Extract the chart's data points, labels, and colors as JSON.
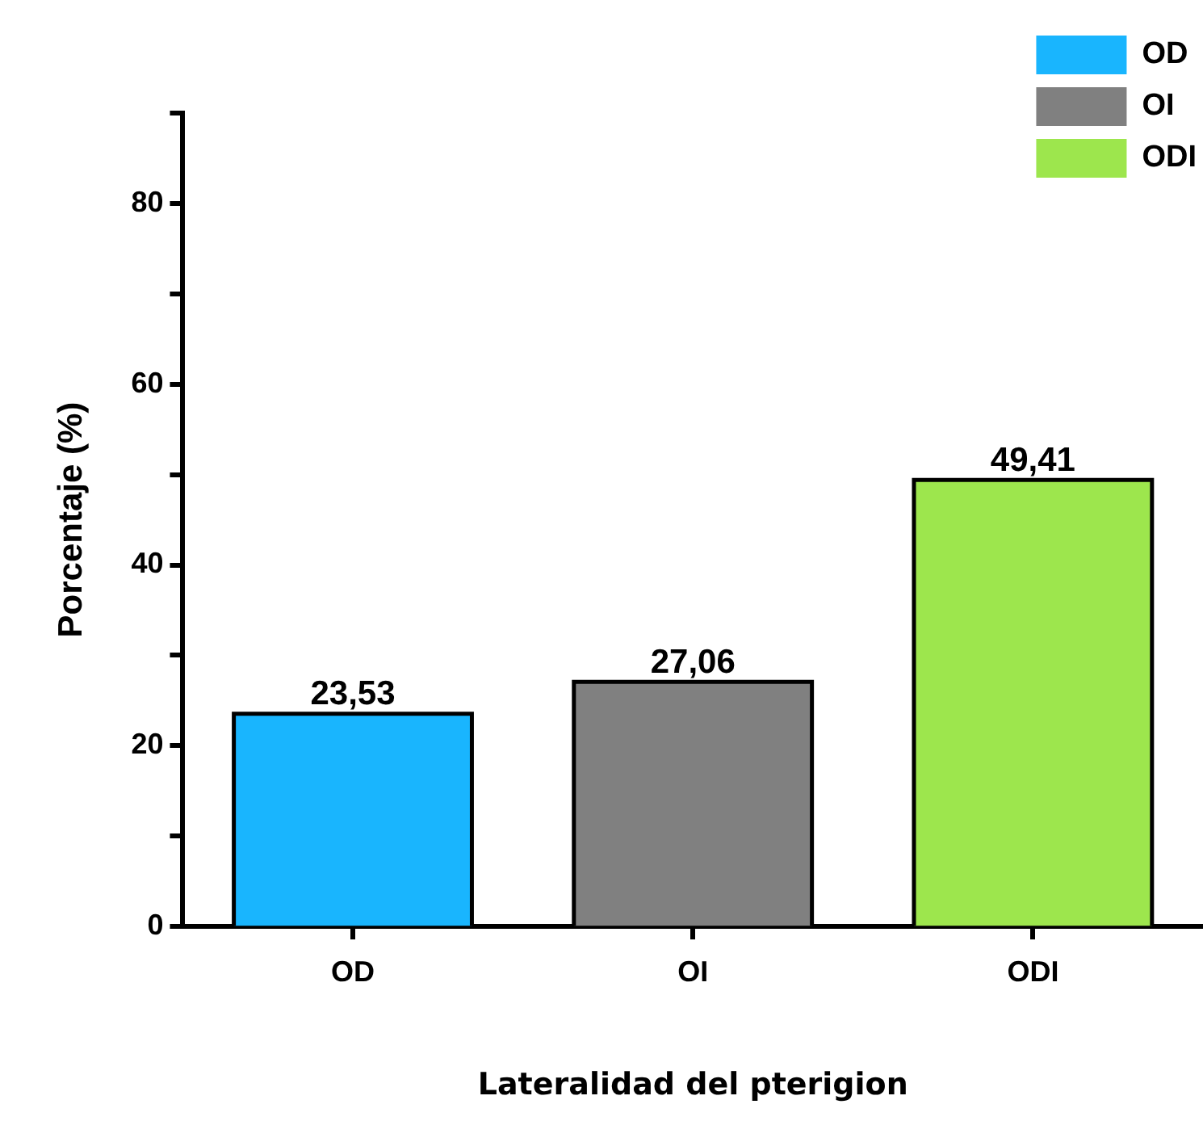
{
  "chart_data": {
    "type": "bar",
    "xlabel": "Lateralidad del pterigion",
    "ylabel": "Porcentaje (%)",
    "categories": [
      "OD",
      "OI",
      "ODI"
    ],
    "series": [
      {
        "name": "OD",
        "color": "#19b5fe",
        "values": [
          23.53,
          null,
          null
        ],
        "value_labels": [
          "23,53",
          null,
          null
        ]
      },
      {
        "name": "OI",
        "color": "#808080",
        "values": [
          null,
          27.06,
          null
        ],
        "value_labels": [
          null,
          "27,06",
          null
        ]
      },
      {
        "name": "ODI",
        "color": "#9de64d",
        "values": [
          null,
          null,
          49.41
        ],
        "value_labels": [
          null,
          null,
          "49,41"
        ]
      }
    ],
    "ylim": [
      0,
      90
    ],
    "yticks": [
      0,
      {
        "value": 10,
        "label": null
      },
      20,
      {
        "value": 30,
        "label": null
      },
      40,
      {
        "value": 50,
        "label": null
      },
      60,
      {
        "value": 70,
        "label": null
      },
      80,
      {
        "value": 90,
        "label": null
      }
    ],
    "grid": false,
    "legend": "top right"
  }
}
